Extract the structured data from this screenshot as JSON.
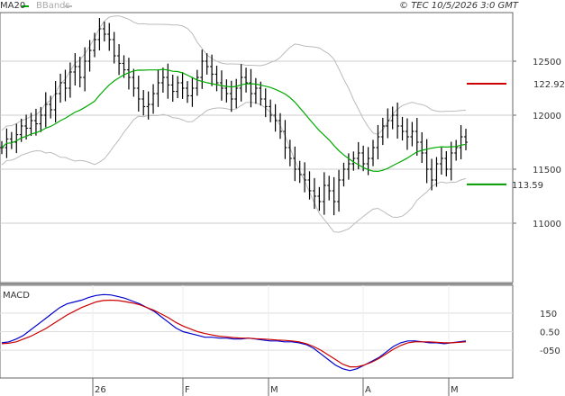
{
  "chart_data": {
    "type": "ohlc",
    "legend": {
      "ma_label": "MA20",
      "bb_label": "BBands",
      "placement": "top-left"
    },
    "copyright": "© TEC 10/5/2026 3:0 GMT",
    "x_ticks": [
      "26",
      "F",
      "M",
      "A",
      "M"
    ],
    "price_axis": {
      "ticks": [
        "12500",
        "12000",
        "11500",
        "11000"
      ],
      "tick_values": [
        12500,
        12000,
        11500,
        11000
      ],
      "range": [
        10450,
        12950
      ]
    },
    "levels": {
      "resistance": {
        "label": "122.92",
        "value": 12292,
        "color": "#cc0000"
      },
      "support": {
        "label": "113.59",
        "value": 11359,
        "color": "#009900"
      }
    },
    "macd": {
      "label": "MACD",
      "ticks": [
        "150",
        "0.50",
        "-050"
      ],
      "tick_values": [
        150,
        50,
        -50
      ],
      "range": [
        -200,
        300
      ]
    },
    "colors": {
      "bars": "#000000",
      "ma": "#00aa00",
      "bbands": "#bbbbbb",
      "macd_line": "#0000cc",
      "signal_line": "#cc0000"
    },
    "closes": [
      11700,
      11780,
      11750,
      11820,
      11900,
      11880,
      11950,
      11920,
      12000,
      12100,
      12050,
      12200,
      12300,
      12250,
      12400,
      12450,
      12350,
      12500,
      12600,
      12700,
      12800,
      12750,
      12700,
      12550,
      12480,
      12420,
      12350,
      12250,
      12150,
      12080,
      12100,
      12200,
      12300,
      12350,
      12280,
      12220,
      12300,
      12250,
      12180,
      12250,
      12350,
      12500,
      12450,
      12380,
      12300,
      12250,
      12200,
      12150,
      12250,
      12350,
      12300,
      12200,
      12250,
      12150,
      12080,
      12000,
      11950,
      11850,
      11700,
      11600,
      11500,
      11450,
      11400,
      11300,
      11250,
      11200,
      11350,
      11300,
      11200,
      11400,
      11500,
      11550,
      11600,
      11650,
      11550,
      11600,
      11700,
      11800,
      11900,
      11950,
      12000,
      11900,
      11850,
      11800,
      11850,
      11750,
      11650,
      11500,
      11400,
      11550,
      11600,
      11500,
      11650,
      11700,
      11800,
      11750
    ],
    "series": [
      {
        "name": "MACD",
        "values": [
          -10,
          -5,
          10,
          30,
          60,
          90,
          120,
          150,
          180,
          200,
          210,
          220,
          235,
          245,
          250,
          248,
          240,
          230,
          215,
          200,
          180,
          160,
          130,
          100,
          70,
          50,
          40,
          30,
          20,
          20,
          15,
          15,
          10,
          10,
          15,
          10,
          5,
          0,
          0,
          -5,
          -5,
          -10,
          -20,
          -40,
          -70,
          -100,
          -130,
          -150,
          -160,
          -150,
          -130,
          -110,
          -90,
          -60,
          -30,
          -10,
          0,
          0,
          -5,
          -10,
          -10,
          -15,
          -10,
          -5,
          0
        ]
      },
      {
        "name": "Signal",
        "values": [
          -15,
          -12,
          -5,
          10,
          25,
          45,
          65,
          90,
          115,
          140,
          160,
          180,
          195,
          210,
          218,
          220,
          218,
          212,
          205,
          195,
          180,
          165,
          145,
          125,
          100,
          80,
          65,
          50,
          40,
          32,
          25,
          22,
          18,
          15,
          15,
          12,
          10,
          8,
          5,
          3,
          0,
          -5,
          -15,
          -30,
          -50,
          -75,
          -100,
          -125,
          -140,
          -140,
          -130,
          -115,
          -95,
          -70,
          -45,
          -25,
          -10,
          -5,
          -5,
          -5,
          -8,
          -10,
          -10,
          -8,
          -5
        ]
      }
    ]
  }
}
